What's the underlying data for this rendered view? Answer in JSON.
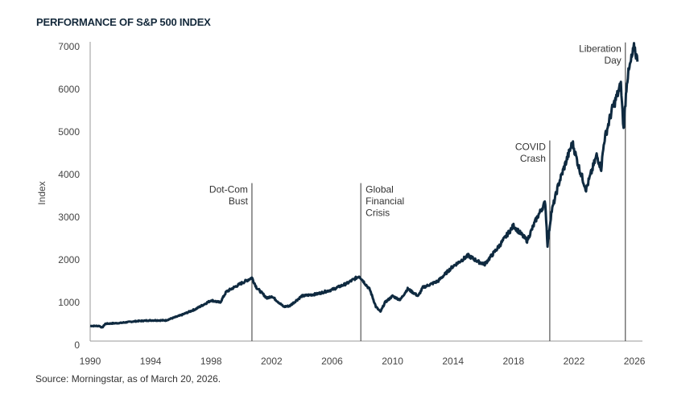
{
  "chart_data": {
    "type": "line",
    "title": "PERFORMANCE OF S&P 500 INDEX",
    "xlabel": "",
    "ylabel": "Index",
    "xlim": [
      1990,
      2026.5
    ],
    "ylim": [
      0,
      7000
    ],
    "xticks": [
      1990,
      1994,
      1998,
      2002,
      2006,
      2010,
      2014,
      2018,
      2022,
      2026
    ],
    "yticks": [
      0,
      1000,
      2000,
      3000,
      4000,
      5000,
      6000,
      7000
    ],
    "grid": false,
    "line_color": "#0f2a40",
    "series": [
      {
        "x": [
          1990.0,
          1990.6,
          1990.8,
          1991.0,
          1992.0,
          1993.0,
          1994.0,
          1995.0,
          1996.0,
          1997.0,
          1998.0,
          1998.6,
          1999.0,
          2000.0,
          2000.7,
          2001.0,
          2001.7,
          2002.0,
          2002.8,
          2003.2,
          2004.0,
          2005.0,
          2006.0,
          2007.0,
          2007.8,
          2008.5,
          2008.9,
          2009.2,
          2009.5,
          2010.0,
          2010.5,
          2011.0,
          2011.7,
          2012.0,
          2013.0,
          2014.0,
          2015.0,
          2015.7,
          2016.1,
          2017.0,
          2018.0,
          2018.9,
          2019.5,
          2020.1,
          2020.25,
          2020.5,
          2021.0,
          2021.9,
          2022.3,
          2022.8,
          2023.5,
          2023.8,
          2024.0,
          2024.5,
          2025.1,
          2025.28,
          2025.5,
          2025.8,
          2026.0,
          2026.2
        ],
        "y": [
          450,
          450,
          410,
          500,
          520,
          560,
          580,
          580,
          700,
          850,
          1050,
          1000,
          1250,
          1450,
          1580,
          1350,
          1100,
          1150,
          900,
          920,
          1150,
          1200,
          1300,
          1450,
          1620,
          1300,
          900,
          780,
          1000,
          1150,
          1060,
          1320,
          1150,
          1350,
          1500,
          1850,
          2100,
          1950,
          1900,
          2300,
          2800,
          2450,
          2950,
          3350,
          2350,
          3100,
          3800,
          4750,
          4200,
          3650,
          4450,
          4150,
          4800,
          5500,
          6100,
          5050,
          6200,
          6700,
          7000,
          6650
        ]
      }
    ],
    "annotations": [
      {
        "x": 2000.7,
        "lines": [
          "Dot-Com",
          "Bust"
        ],
        "side": "left",
        "top": 3800
      },
      {
        "x": 2007.9,
        "lines": [
          "Global",
          "Financial",
          "Crisis"
        ],
        "side": "right",
        "top": 3800
      },
      {
        "x": 2020.4,
        "lines": [
          "COVID",
          "Crash"
        ],
        "side": "left",
        "top": 4800
      },
      {
        "x": 2025.4,
        "lines": [
          "Liberation",
          "Day"
        ],
        "side": "left",
        "top": 7100
      }
    ],
    "source": "Source: Morningstar, as of March 20, 2026."
  }
}
